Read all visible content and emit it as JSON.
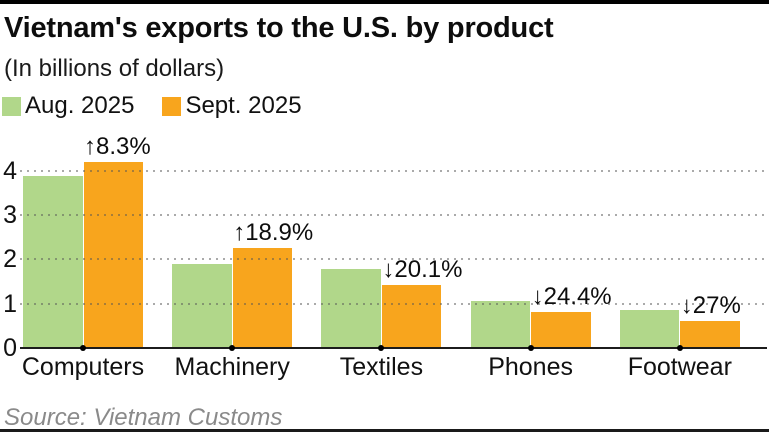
{
  "page": {
    "title": "Vietnam's exports to the U.S. by product",
    "subtitle": "(In billions of dollars)",
    "source": "Source: Vietnam Customs"
  },
  "legend": [
    {
      "label": "Aug. 2025",
      "color": "#B1D78A"
    },
    {
      "label": "Sept. 2025",
      "color": "#F8A51D"
    }
  ],
  "chart_data": {
    "type": "bar",
    "title": "Vietnam's exports to the U.S. by product",
    "subtitle": "(In billions of dollars)",
    "unit": "billions of dollars",
    "categories": [
      "Computers",
      "Machinery",
      "Textiles",
      "Phones",
      "Footwear"
    ],
    "series": [
      {
        "name": "Aug. 2025",
        "color": "#B1D78A",
        "values": [
          3.88,
          1.9,
          1.78,
          1.07,
          0.85
        ]
      },
      {
        "name": "Sept. 2025",
        "color": "#F8A51D",
        "values": [
          4.2,
          2.26,
          1.42,
          0.81,
          0.62
        ]
      }
    ],
    "annotations": [
      {
        "category": "Computers",
        "label": "↑8.3%",
        "direction": "up"
      },
      {
        "category": "Machinery",
        "label": "↑18.9%",
        "direction": "up"
      },
      {
        "category": "Textiles",
        "label": "↓20.1%",
        "direction": "down"
      },
      {
        "category": "Phones",
        "label": "↓24.4%",
        "direction": "down"
      },
      {
        "category": "Footwear",
        "label": "↓27%",
        "direction": "down"
      }
    ],
    "y_ticks": [
      0,
      1,
      2,
      3,
      4
    ],
    "ylim": [
      0,
      4.5
    ],
    "xlabel": "",
    "ylabel": "",
    "grid": "dotted horizontal gridlines drawn over bars",
    "legend_position": "top-left",
    "source": "Source: Vietnam Customs"
  }
}
